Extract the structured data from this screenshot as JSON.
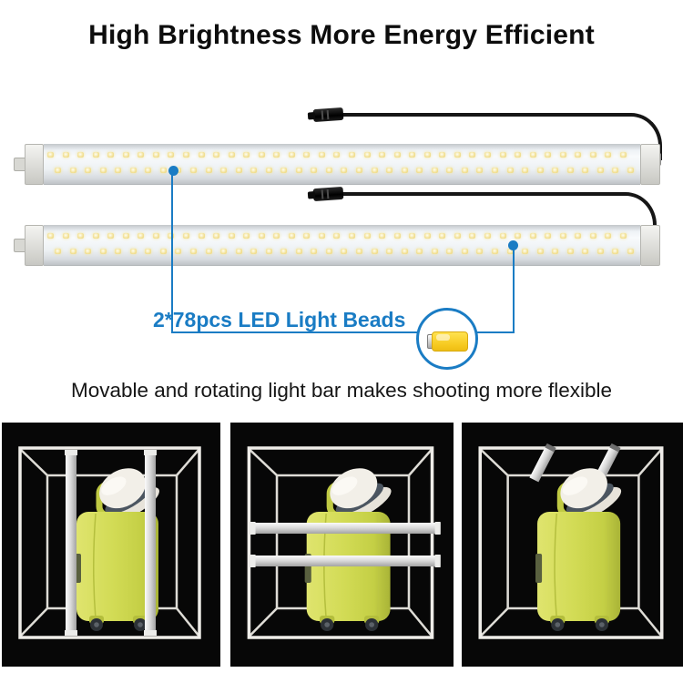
{
  "title": "High Brightness More Energy Efficient",
  "callout": {
    "label": "2*78pcs LED Light Beads"
  },
  "subtitle": "Movable and rotating light bar makes shooting more flexible",
  "lights": {
    "bar_count": 2,
    "leds_per_bar": 78,
    "leds_per_row": 39
  },
  "colors": {
    "accent_blue": "#1a7cc4",
    "led_yellow": "#f2e094",
    "bead_yellow": "#f6c91f",
    "suitcase_green": "#ccd653",
    "panel_background": "#070707",
    "cable_black": "#161616"
  },
  "icons": [
    {
      "name": "led-bead-icon",
      "meaning": "SMD LED light bead"
    }
  ],
  "panels": [
    {
      "name": "vertical-side-light-bars"
    },
    {
      "name": "horizontal-middle-light-bars"
    },
    {
      "name": "ceiling-mounted-light-bars"
    }
  ]
}
